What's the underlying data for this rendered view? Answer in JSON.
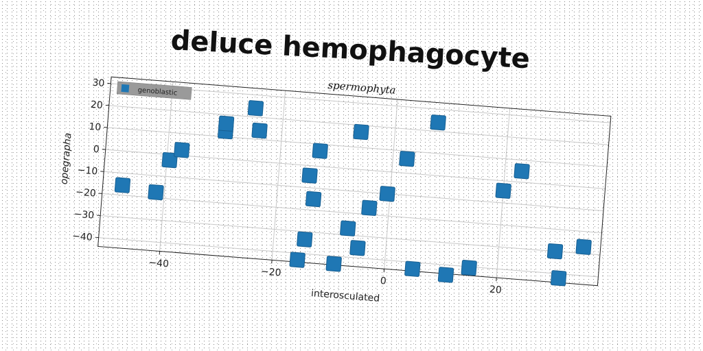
{
  "title": "deluce hemophagocyte",
  "chart_data": {
    "type": "scatter",
    "title": "spermophyta",
    "xlabel": "interosculated",
    "ylabel": "opegrapha",
    "xlim": [
      -51,
      38
    ],
    "ylim": [
      -44,
      33
    ],
    "xticks": [
      -40,
      -20,
      0,
      20
    ],
    "yticks": [
      30,
      20,
      10,
      0,
      -10,
      -20,
      -30,
      -40
    ],
    "grid": true,
    "legend": "top-left",
    "series": [
      {
        "name": "genoblastic",
        "color": "#1f77b4",
        "points": [
          [
            -47.5,
            -15.5
          ],
          [
            -41.5,
            -17.5
          ],
          [
            -39.5,
            -2.5
          ],
          [
            -37.5,
            2.5
          ],
          [
            -30,
            12.5
          ],
          [
            -30,
            16
          ],
          [
            -25,
            24
          ],
          [
            -24,
            14
          ],
          [
            -14.5,
            -4.5
          ],
          [
            -13.5,
            -15
          ],
          [
            -13,
            7
          ],
          [
            -14.5,
            -33.5
          ],
          [
            -15.5,
            -43
          ],
          [
            -9,
            -43.5
          ],
          [
            -7,
            -27
          ],
          [
            -5,
            -35.5
          ],
          [
            -6,
            17
          ],
          [
            -3.5,
            -17
          ],
          [
            -0.5,
            -10
          ],
          [
            2.5,
            6.5
          ],
          [
            5,
            -43
          ],
          [
            7.5,
            24
          ],
          [
            11,
            -44.5
          ],
          [
            15,
            -40.5
          ],
          [
            20,
            -4.5
          ],
          [
            23,
            5
          ],
          [
            30,
            -30
          ],
          [
            31,
            -42
          ],
          [
            35,
            -27
          ]
        ]
      }
    ]
  }
}
